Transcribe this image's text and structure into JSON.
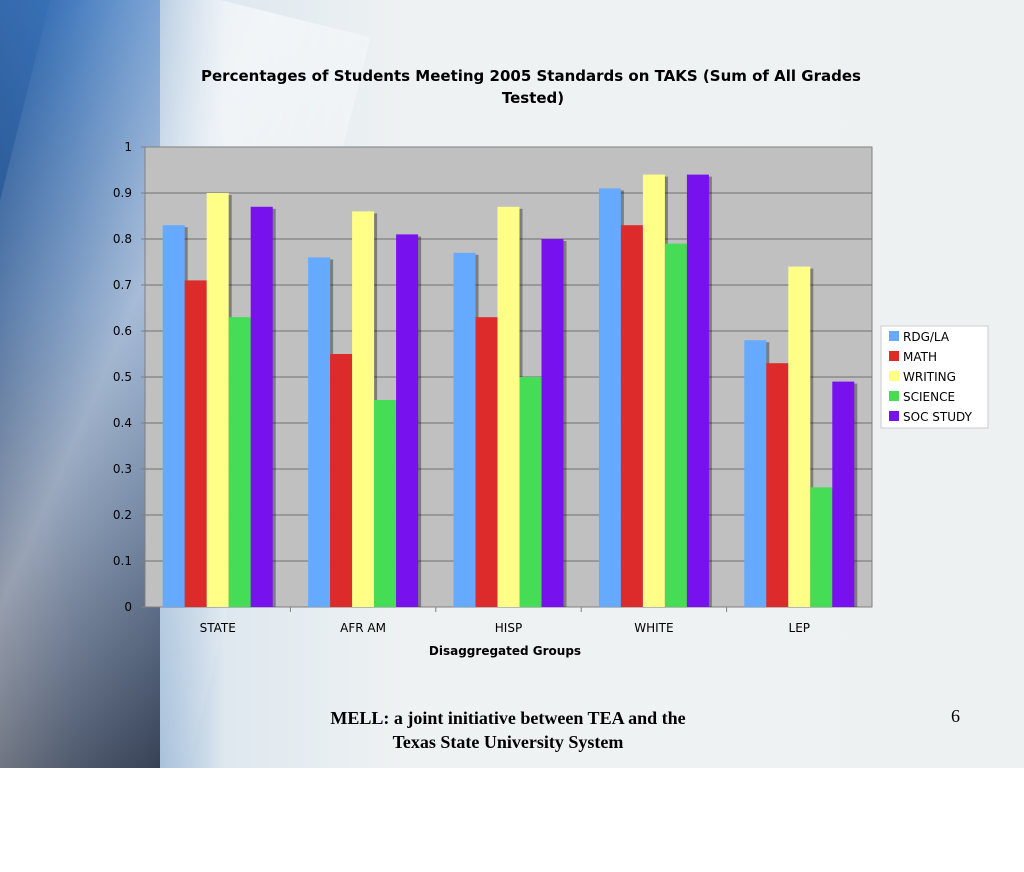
{
  "chart_data": {
    "type": "bar",
    "title_lines": [
      "Percentages of Students  Meeting 2005 Standards  on TAKS (Sum of All Grades",
      "Tested)"
    ],
    "xlabel": "Disaggregated Groups",
    "ylabel": "",
    "ylim": [
      0,
      1
    ],
    "yticks": [
      "0",
      "0.1",
      "0.2",
      "0.3",
      "0.4",
      "0.5",
      "0.6",
      "0.7",
      "0.8",
      "0.9",
      "1"
    ],
    "grid": true,
    "legend_position": "right",
    "categories": [
      "STATE",
      "AFR AM",
      "HISP",
      "WHITE",
      "LEP"
    ],
    "series": [
      {
        "name": "RDG/LA",
        "color": "#66aaff",
        "values": [
          0.83,
          0.76,
          0.77,
          0.91,
          0.58
        ]
      },
      {
        "name": "MATH",
        "color": "#dd2b2b",
        "values": [
          0.71,
          0.55,
          0.63,
          0.83,
          0.53
        ]
      },
      {
        "name": "WRITING",
        "color": "#ffff88",
        "values": [
          0.9,
          0.86,
          0.87,
          0.94,
          0.74
        ]
      },
      {
        "name": "SCIENCE",
        "color": "#44dd55",
        "values": [
          0.63,
          0.45,
          0.5,
          0.79,
          0.26
        ]
      },
      {
        "name": "SOC STUDY",
        "color": "#7711ee",
        "values": [
          0.87,
          0.81,
          0.8,
          0.94,
          0.49
        ]
      }
    ]
  },
  "footer": {
    "line1": "MELL: a joint initiative between TEA and the",
    "line2": "Texas State University System"
  },
  "slide_number": "6"
}
